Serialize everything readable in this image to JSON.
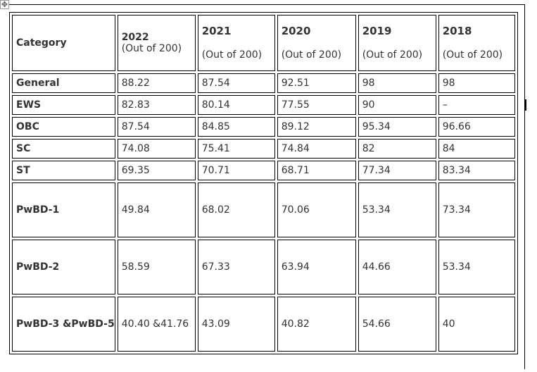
{
  "table": {
    "category_header": "Category",
    "year_headers": [
      {
        "year": "2022",
        "sub": "(Out of 200)"
      },
      {
        "year": "2021",
        "sub": "(Out of 200)"
      },
      {
        "year": "2020",
        "sub": "(Out of 200)"
      },
      {
        "year": "2019",
        "sub": "(Out of 200)"
      },
      {
        "year": "2018",
        "sub": "(Out of 200)"
      }
    ],
    "rows": [
      {
        "category": "General",
        "values": [
          "88.22",
          "87.54",
          "92.51",
          "98",
          "98"
        ]
      },
      {
        "category": "EWS",
        "values": [
          "82.83",
          "80.14",
          "77.55",
          "90",
          "–"
        ]
      },
      {
        "category": "OBC",
        "values": [
          "87.54",
          "84.85",
          "89.12",
          "95.34",
          "96.66"
        ]
      },
      {
        "category": "SC",
        "values": [
          "74.08",
          "75.41",
          "74.84",
          "82",
          "84"
        ]
      },
      {
        "category": "ST",
        "values": [
          "69.35",
          "70.71",
          "68.71",
          "77.34",
          "83.34"
        ]
      },
      {
        "category": "PwBD-1",
        "values": [
          "49.84",
          "68.02",
          "70.06",
          "53.34",
          "73.34"
        ]
      },
      {
        "category": "PwBD-2",
        "values": [
          "58.59",
          "67.33",
          "63.94",
          "44.66",
          "53.34"
        ]
      },
      {
        "category": "PwBD-3 &PwBD-5",
        "values": [
          "40.40 &41.76",
          "43.09",
          "40.82",
          "54.66",
          "40"
        ]
      }
    ]
  },
  "icons": {
    "move_handle": "move-icon"
  }
}
